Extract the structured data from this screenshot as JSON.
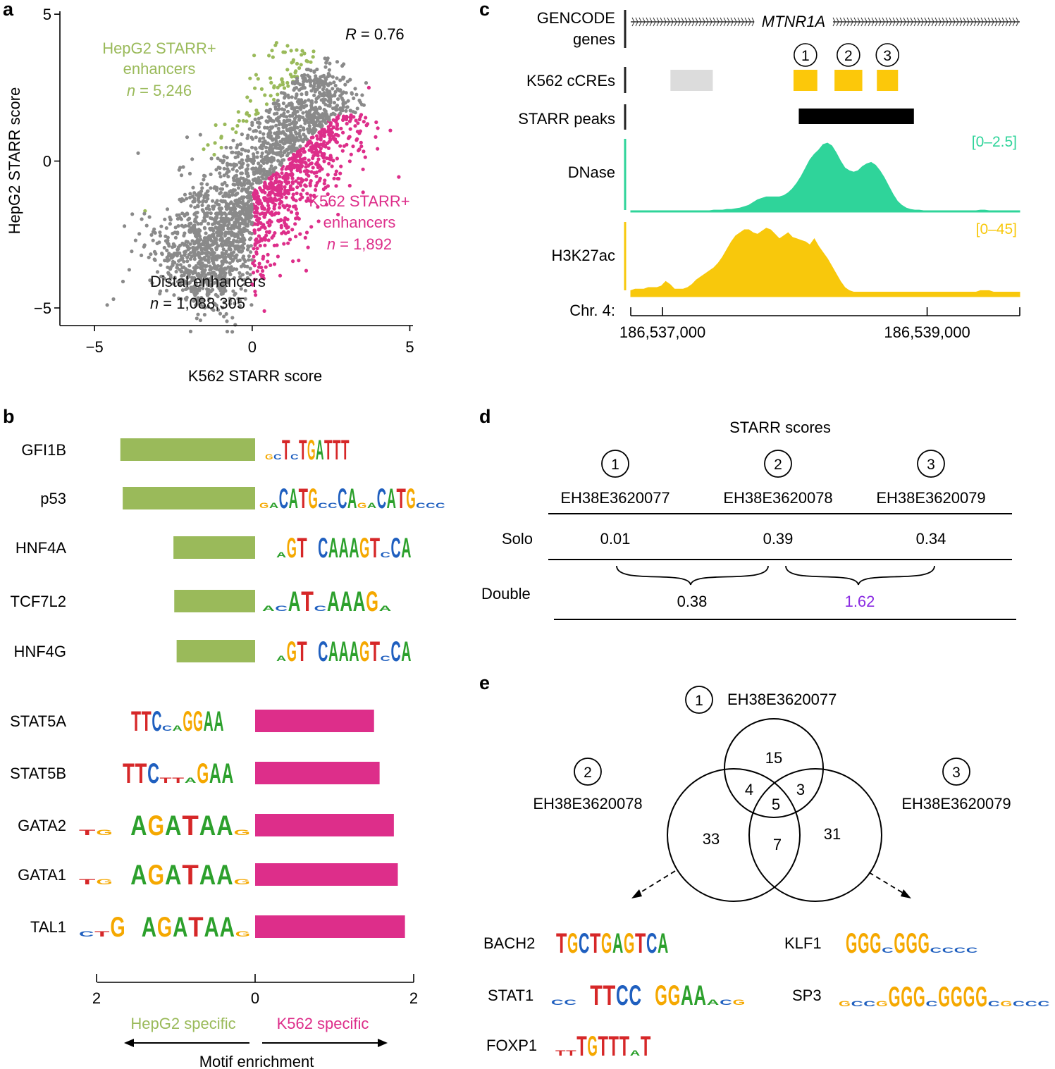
{
  "panel_labels": {
    "a": "a",
    "b": "b",
    "c": "c",
    "d": "d",
    "e": "e"
  },
  "colors": {
    "hepg2": "#9aba5a",
    "k562": "#dd2e8a",
    "gray": "#8a8a8a",
    "dnase": "#2fd49a",
    "h3k27ac": "#f8c80c",
    "ccre_yellow": "#fcc80a",
    "ccre_gray": "#dcdcdc",
    "purple": "#8a2be2",
    "base_A": "#2ca02c",
    "base_C": "#1f5fbf",
    "base_G": "#f5a800",
    "base_T": "#d62728"
  },
  "chart_data": [
    {
      "type": "scatter",
      "panel": "a",
      "title": "",
      "xlabel": "K562 STARR score",
      "ylabel": "HepG2 STARR score",
      "xlim": [
        -6.1,
        5.1
      ],
      "ylim": [
        -5.6,
        5.1
      ],
      "xticks": [
        "−5",
        "0",
        "5"
      ],
      "yticks": [
        "5",
        "0",
        "−5"
      ],
      "xtick_values": [
        -5,
        0,
        5
      ],
      "ytick_values": [
        5,
        0,
        -5
      ],
      "annotation_r": "= 0.76",
      "annotation_r_symbol": "R",
      "series": [
        {
          "name": "HepG2 STARR+ enhancers",
          "label_line1": "HepG2 STARR+",
          "label_line2": "enhancers",
          "n_prefix": "n",
          "n_value": "= 5,246"
        },
        {
          "name": "K562 STARR+ enhancers",
          "label_line1": "K562 STARR+",
          "label_line2": "enhancers",
          "n_prefix": "n",
          "n_value": "= 1,892"
        },
        {
          "name": "Distal enhancers",
          "label_line1": "Distal enhancers",
          "n_prefix": "n",
          "n_value": "= 1,088,305"
        }
      ],
      "scatter_shape": {
        "main_band_lower_left": [
          -2.2,
          -4.3
        ],
        "main_band_upper_right": [
          2.6,
          2.6
        ],
        "band_width": 1.6,
        "outliers": [
          [
            -4.6,
            -4.9
          ],
          [
            -4.4,
            -4.7
          ],
          [
            -4.1,
            -4.1
          ],
          [
            -3.9,
            -3.7
          ],
          [
            2.9,
            3.3
          ],
          [
            2.4,
            3.5
          ],
          [
            3.7,
            2.5
          ],
          [
            3.4,
            0.4
          ],
          [
            3.2,
            0.5
          ],
          [
            -3.4,
            -1.7
          ],
          [
            -3.7,
            -2.7
          ]
        ]
      }
    },
    {
      "type": "bar",
      "panel": "b",
      "xlabel": "Motif enrichment",
      "left_label": "HepG2 specific",
      "right_label": "K562 specific",
      "xticks": [
        "2",
        "0",
        "2"
      ],
      "xlim": [
        -2,
        2
      ],
      "bars": [
        {
          "tf": "GFI1B",
          "value": -1.7,
          "group": "hepg2"
        },
        {
          "tf": "p53",
          "value": -1.67,
          "group": "hepg2"
        },
        {
          "tf": "HNF4A",
          "value": -1.03,
          "group": "hepg2"
        },
        {
          "tf": "TCF7L2",
          "value": -1.02,
          "group": "hepg2"
        },
        {
          "tf": "HNF4G",
          "value": -0.99,
          "group": "hepg2"
        },
        {
          "tf": "STAT5A",
          "value": 1.5,
          "group": "k562"
        },
        {
          "tf": "STAT5B",
          "value": 1.57,
          "group": "k562"
        },
        {
          "tf": "GATA2",
          "value": 1.75,
          "group": "k562"
        },
        {
          "tf": "GATA1",
          "value": 1.8,
          "group": "k562"
        },
        {
          "tf": "TAL1",
          "value": 1.89,
          "group": "k562"
        }
      ]
    },
    {
      "type": "genome_track",
      "panel": "c",
      "track_labels": {
        "gencode_1": "GENCODE",
        "gencode_2": "genes",
        "ccres": "K562 cCREs",
        "starr": "STARR peaks",
        "dnase": "DNase",
        "h3k27ac": "H3K27ac",
        "chr": "Chr. 4:"
      },
      "gene_name": "MTNR1A",
      "dnase_range": "[0–2.5]",
      "h3k27ac_range": "[0–45]",
      "coord_ticks": [
        "186,537,000",
        "186,539,000"
      ],
      "region": [
        186536760,
        186539700
      ],
      "tick_positions": [
        186537000,
        186539000
      ],
      "ccres": [
        {
          "start": 186537060,
          "end": 186537380,
          "color": "gray"
        },
        {
          "start": 186537990,
          "end": 186538170,
          "color": "yellow",
          "label": "1"
        },
        {
          "start": 186538300,
          "end": 186538510,
          "color": "yellow",
          "label": "2"
        },
        {
          "start": 186538620,
          "end": 186538780,
          "color": "yellow",
          "label": "3"
        }
      ],
      "starr_peak": {
        "start": 186538030,
        "end": 186538900
      },
      "dnase_profile": [
        0.02,
        0.02,
        0.02,
        0.02,
        0.02,
        0.02,
        0.02,
        0.02,
        0.02,
        0.02,
        0.02,
        0.02,
        0.02,
        0.02,
        0.02,
        0.02,
        0.02,
        0.02,
        0.02,
        0.03,
        0.03,
        0.03,
        0.04,
        0.04,
        0.05,
        0.06,
        0.08,
        0.1,
        0.14,
        0.18,
        0.2,
        0.22,
        0.22,
        0.22,
        0.22,
        0.24,
        0.28,
        0.34,
        0.42,
        0.52,
        0.64,
        0.76,
        0.84,
        0.9,
        0.98,
        1.0,
        0.96,
        0.86,
        0.74,
        0.64,
        0.6,
        0.58,
        0.6,
        0.66,
        0.7,
        0.72,
        0.68,
        0.6,
        0.5,
        0.38,
        0.26,
        0.16,
        0.1,
        0.06,
        0.04,
        0.03,
        0.03,
        0.02,
        0.02,
        0.02,
        0.02,
        0.02,
        0.02,
        0.02,
        0.02,
        0.02,
        0.02,
        0.02,
        0.02,
        0.02,
        0.03,
        0.03,
        0.02,
        0.02,
        0.02,
        0.02,
        0.02,
        0.02,
        0.02,
        0.02
      ],
      "h3k27ac_profile": [
        0.08,
        0.1,
        0.1,
        0.1,
        0.12,
        0.12,
        0.12,
        0.14,
        0.2,
        0.16,
        0.1,
        0.1,
        0.1,
        0.12,
        0.16,
        0.22,
        0.26,
        0.3,
        0.34,
        0.38,
        0.44,
        0.52,
        0.62,
        0.72,
        0.8,
        0.84,
        0.88,
        0.88,
        0.84,
        0.82,
        0.86,
        0.9,
        0.88,
        0.82,
        0.76,
        0.8,
        0.84,
        0.78,
        0.76,
        0.74,
        0.72,
        0.68,
        0.76,
        0.66,
        0.58,
        0.5,
        0.4,
        0.3,
        0.2,
        0.12,
        0.08,
        0.06,
        0.06,
        0.06,
        0.06,
        0.06,
        0.06,
        0.06,
        0.06,
        0.06,
        0.06,
        0.06,
        0.06,
        0.06,
        0.06,
        0.06,
        0.06,
        0.06,
        0.06,
        0.06,
        0.06,
        0.06,
        0.06,
        0.06,
        0.06,
        0.06,
        0.06,
        0.06,
        0.06,
        0.06,
        0.08,
        0.08,
        0.08,
        0.06,
        0.06,
        0.06,
        0.06,
        0.06,
        0.06,
        0.06
      ]
    },
    {
      "type": "table",
      "panel": "d",
      "title": "STARR scores",
      "columns": [
        {
          "num": "1",
          "id": "EH38E3620077"
        },
        {
          "num": "2",
          "id": "EH38E3620078"
        },
        {
          "num": "3",
          "id": "EH38E3620079"
        }
      ],
      "rows": [
        {
          "label": "Solo",
          "values": [
            "0.01",
            "0.39",
            "0.34"
          ]
        },
        {
          "label": "Double",
          "values": [
            "0.38",
            "1.62"
          ]
        }
      ]
    },
    {
      "type": "venn",
      "panel": "e",
      "sets": [
        {
          "num": "1",
          "id": "EH38E3620077"
        },
        {
          "num": "2",
          "id": "EH38E3620078"
        },
        {
          "num": "3",
          "id": "EH38E3620079"
        }
      ],
      "regions": {
        "only_1": "15",
        "only_2": "33",
        "only_3": "31",
        "1_2": "4",
        "1_3": "3",
        "2_3": "7",
        "all": "5"
      },
      "motifs_left": [
        "BACH2",
        "STAT1",
        "FOXP1"
      ],
      "motifs_right": [
        "KLF1",
        "SP3"
      ]
    }
  ],
  "logos": {
    "GFI1B": "gcTcTGATTT",
    "p53": "gaCATGccCAgaCATGccc",
    "HNF4A": "aGT CAAAGTcCA",
    "TCF7L2": "acATcAAAGa",
    "HNF4G": "aGT CAAAGTcCA",
    "STAT5A": "TTCcaGGAA",
    "STAT5B": "TTCttaGAA",
    "GATA2": "tg AGATAAg",
    "GATA1": "tg AGATAAg",
    "TAL1": "ctG AGATAAg",
    "BACH2": "TGCTGAGTCA",
    "STAT1": "cc TTCC GGAAacg",
    "FOXP1": "ttTGTTTaT",
    "KLF1": "GGGcGGGcccc",
    "SP3": "gccgGGGcGGGGcgccc"
  }
}
